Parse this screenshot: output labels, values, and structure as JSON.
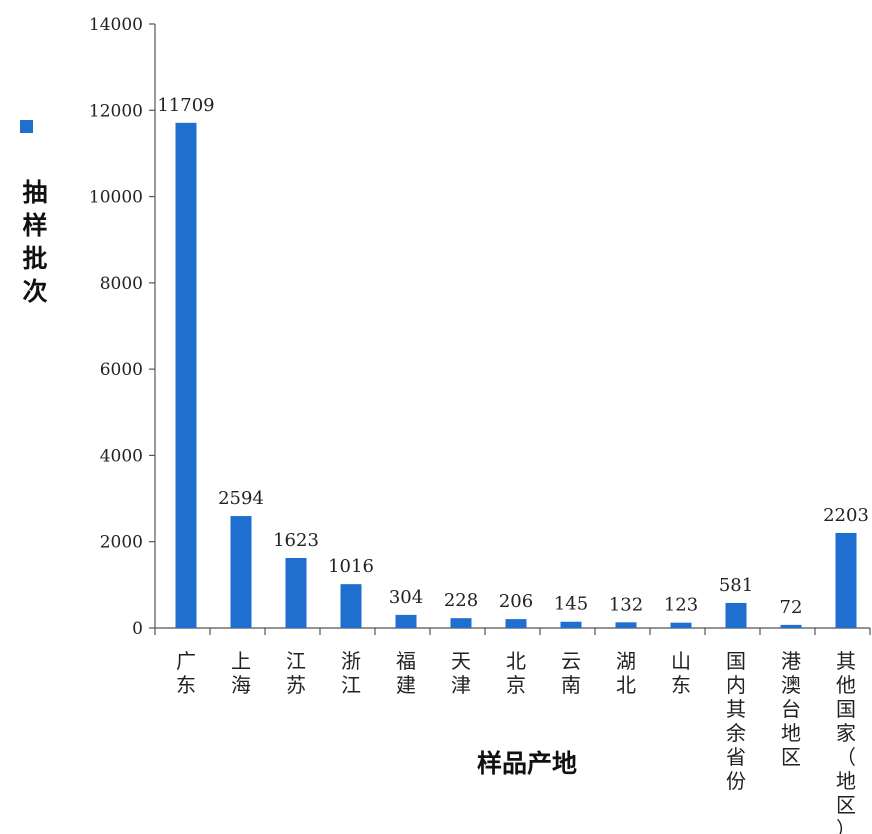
{
  "chart_data": {
    "type": "bar",
    "title": "",
    "ylabel": "抽样批次",
    "xlabel": "样品产地",
    "ylim": [
      0,
      14000
    ],
    "yticks": [
      0,
      2000,
      4000,
      6000,
      8000,
      10000,
      12000,
      14000
    ],
    "grid": false,
    "legend": "left",
    "categories": [
      "广东",
      "上海",
      "江苏",
      "浙江",
      "福建",
      "天津",
      "北京",
      "云南",
      "湖北",
      "山东",
      "国内其余省份",
      "港澳台地区",
      "其他国家（地区）"
    ],
    "series": [
      {
        "values": [
          11709,
          2594,
          1623,
          1016,
          304,
          228,
          206,
          145,
          132,
          123,
          581,
          72,
          2203
        ],
        "color": "#1e6fd0"
      }
    ]
  }
}
